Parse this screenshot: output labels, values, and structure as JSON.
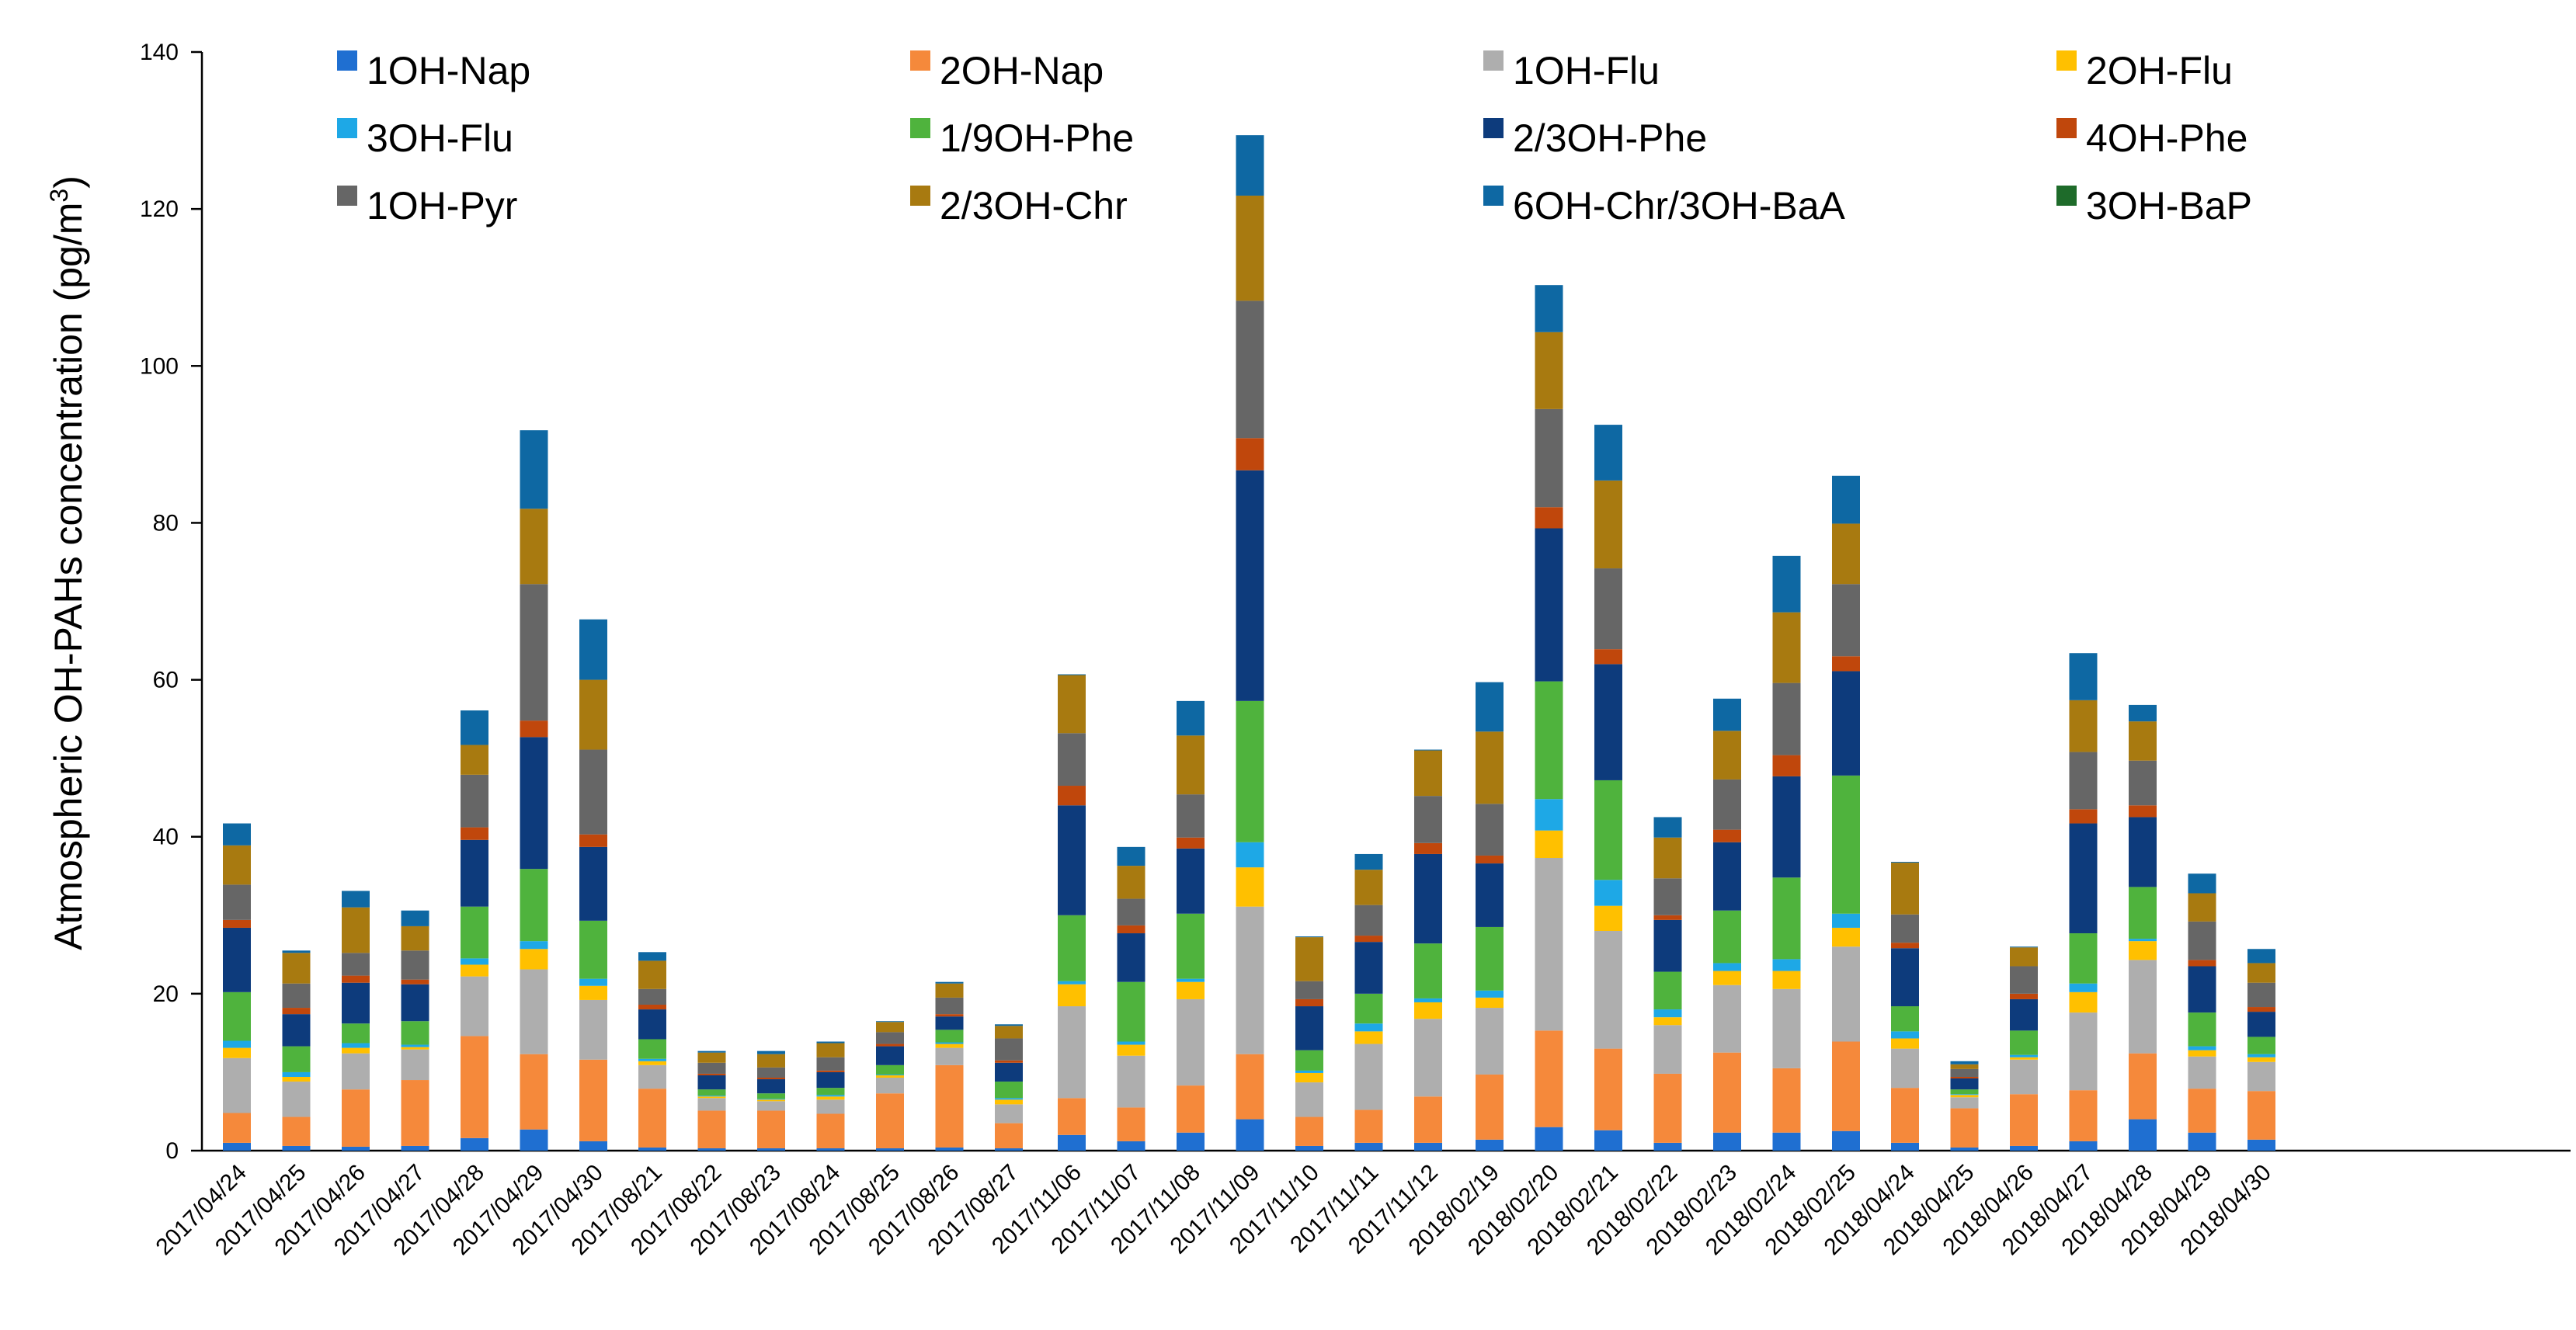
{
  "chart_data": {
    "type": "bar",
    "stacked": true,
    "title": "",
    "xlabel": "",
    "ylabel": "Atmospheric OH-PAHs concentration (pg/m³)",
    "ylabel_parts": [
      "Atmospheric OH-PAHs concentration (pg/m",
      "3",
      ")"
    ],
    "ylim": [
      0,
      140
    ],
    "yticks": [
      0,
      20,
      40,
      60,
      80,
      100,
      120,
      140
    ],
    "legend_position": "top",
    "groups": [
      {
        "categories": [
          "2017/04/24",
          "2017/04/25",
          "2017/04/26",
          "2017/04/27",
          "2017/04/28",
          "2017/04/29",
          "2017/04/30"
        ]
      },
      {
        "categories": [
          "2017/08/21",
          "2017/08/22",
          "2017/08/23",
          "2017/08/24",
          "2017/08/25",
          "2017/08/26",
          "2017/08/27"
        ]
      },
      {
        "categories": [
          "2017/11/06",
          "2017/11/07",
          "2017/11/08",
          "2017/11/09",
          "2017/11/10",
          "2017/11/11",
          "2017/11/12"
        ]
      },
      {
        "categories": [
          "2018/02/19",
          "2018/02/20",
          "2018/02/21",
          "2018/02/22",
          "2018/02/23",
          "2018/02/24",
          "2018/02/25"
        ]
      },
      {
        "categories": [
          "2018/04/24",
          "2018/04/25",
          "2018/04/26",
          "2018/04/27",
          "2018/04/28",
          "2018/04/29",
          "2018/04/30"
        ]
      }
    ],
    "series": [
      {
        "name": "1OH-Nap",
        "color": "#1f6fd1",
        "values": [
          1.0,
          0.6,
          0.5,
          0.6,
          1.6,
          2.7,
          1.2,
          0.4,
          0.3,
          0.3,
          0.3,
          0.3,
          0.4,
          0.3,
          2.0,
          1.2,
          2.3,
          4.0,
          0.6,
          1.0,
          1.0,
          1.4,
          3.0,
          2.6,
          1.0,
          2.3,
          2.3,
          2.5,
          1.0,
          0.4,
          0.6,
          1.2,
          4.0,
          2.3,
          1.4
        ]
      },
      {
        "name": "2OH-Nap",
        "color": "#f5893b",
        "values": [
          3.8,
          3.7,
          7.3,
          8.4,
          13.0,
          9.6,
          10.4,
          7.5,
          4.8,
          4.8,
          4.4,
          7.0,
          10.5,
          3.2,
          4.7,
          4.3,
          6.0,
          8.3,
          3.7,
          4.2,
          5.9,
          8.3,
          12.3,
          10.4,
          8.8,
          10.2,
          8.2,
          11.4,
          7.0,
          5.0,
          6.6,
          6.5,
          8.4,
          5.6,
          6.2
        ]
      },
      {
        "name": "1OH-Flu",
        "color": "#aeaeae",
        "values": [
          7.0,
          4.5,
          4.6,
          3.9,
          7.6,
          10.8,
          7.6,
          3.0,
          1.6,
          1.2,
          1.8,
          2.0,
          2.2,
          2.4,
          11.7,
          6.6,
          11.0,
          18.8,
          4.4,
          8.4,
          9.9,
          8.5,
          22.0,
          15.0,
          6.2,
          8.6,
          10.1,
          12.1,
          5.0,
          1.4,
          4.4,
          9.9,
          11.9,
          4.1,
          3.7
        ]
      },
      {
        "name": "2OH-Flu",
        "color": "#ffc000",
        "values": [
          1.3,
          0.6,
          0.7,
          0.3,
          1.5,
          2.6,
          1.8,
          0.5,
          0.2,
          0.2,
          0.4,
          0.3,
          0.5,
          0.6,
          2.8,
          1.4,
          2.2,
          5.0,
          1.2,
          1.6,
          2.1,
          1.3,
          3.5,
          3.2,
          1.0,
          1.8,
          2.3,
          2.4,
          1.3,
          0.3,
          0.3,
          2.6,
          2.4,
          0.8,
          0.6
        ]
      },
      {
        "name": "3OH-Flu",
        "color": "#1ea8e6",
        "values": [
          0.9,
          0.6,
          0.6,
          0.3,
          0.8,
          1.0,
          0.9,
          0.3,
          0.1,
          0.1,
          0.2,
          0.1,
          0.2,
          0.2,
          0.4,
          0.4,
          0.4,
          3.2,
          0.3,
          1.0,
          0.5,
          0.9,
          4.0,
          3.3,
          1.0,
          1.0,
          1.5,
          1.8,
          0.9,
          0.1,
          0.3,
          1.1,
          0.3,
          0.5,
          0.4
        ]
      },
      {
        "name": "1/9OH-Phe",
        "color": "#4fb33d",
        "values": [
          6.2,
          3.3,
          2.5,
          3.0,
          6.6,
          9.2,
          7.4,
          2.5,
          0.8,
          0.7,
          0.9,
          1.2,
          1.6,
          2.1,
          8.4,
          7.6,
          8.3,
          18.0,
          2.6,
          3.8,
          7.0,
          8.1,
          15.0,
          12.7,
          4.8,
          6.7,
          10.4,
          17.6,
          3.2,
          0.6,
          3.1,
          6.4,
          6.6,
          4.3,
          2.2
        ]
      },
      {
        "name": "2/3OH-Phe",
        "color": "#0d3b7c",
        "values": [
          8.2,
          4.1,
          5.2,
          4.7,
          8.5,
          16.8,
          9.4,
          3.8,
          1.8,
          1.8,
          2.0,
          2.4,
          1.7,
          2.4,
          14.0,
          6.2,
          8.3,
          29.4,
          5.6,
          6.6,
          11.4,
          8.1,
          19.5,
          14.8,
          6.6,
          8.7,
          12.9,
          13.3,
          7.4,
          1.4,
          4.0,
          14.0,
          8.9,
          5.9,
          3.2
        ]
      },
      {
        "name": "4OH-Phe",
        "color": "#c0470c",
        "values": [
          1.0,
          0.8,
          0.9,
          0.6,
          1.6,
          2.1,
          1.6,
          0.6,
          0.2,
          0.2,
          0.2,
          0.3,
          0.3,
          0.3,
          2.5,
          1.0,
          1.4,
          4.1,
          0.9,
          0.8,
          1.4,
          1.0,
          2.7,
          1.9,
          0.6,
          1.6,
          2.7,
          1.9,
          0.7,
          0.2,
          0.7,
          1.8,
          1.5,
          0.8,
          0.6
        ]
      },
      {
        "name": "1OH-Pyr",
        "color": "#666666",
        "values": [
          4.5,
          3.1,
          2.9,
          3.7,
          6.7,
          17.4,
          10.8,
          2.0,
          1.4,
          1.3,
          1.7,
          1.5,
          2.1,
          2.8,
          6.7,
          3.4,
          5.5,
          17.5,
          2.3,
          3.9,
          6.0,
          6.6,
          12.5,
          10.3,
          4.7,
          6.4,
          9.2,
          9.2,
          3.6,
          1.0,
          3.5,
          7.3,
          5.7,
          4.9,
          3.1
        ]
      },
      {
        "name": "2/3OH-Chr",
        "color": "#a87a10",
        "values": [
          5.0,
          3.9,
          5.8,
          3.1,
          3.8,
          9.6,
          8.9,
          3.6,
          1.3,
          1.7,
          1.8,
          1.3,
          1.8,
          1.6,
          7.4,
          4.2,
          7.5,
          13.4,
          5.6,
          4.5,
          5.8,
          9.2,
          9.8,
          11.2,
          5.2,
          6.2,
          9.0,
          7.7,
          6.6,
          0.6,
          2.4,
          6.6,
          5.0,
          3.6,
          2.5
        ]
      },
      {
        "name": "6OH-Chr/3OH-BaA",
        "color": "#0e68a3",
        "values": [
          2.8,
          0.3,
          2.1,
          2.0,
          4.4,
          10.0,
          7.7,
          1.1,
          0.2,
          0.4,
          0.2,
          0.1,
          0.2,
          0.2,
          0.1,
          2.4,
          4.4,
          7.7,
          0.1,
          2.0,
          0.1,
          6.3,
          6.0,
          7.1,
          2.6,
          4.1,
          7.2,
          6.1,
          0.1,
          0.4,
          0.1,
          6.0,
          2.1,
          2.5,
          1.8
        ]
      },
      {
        "name": "3OH-BaP",
        "color": "#1e6b2a",
        "values": [
          0,
          0,
          0,
          0,
          0,
          0,
          0,
          0,
          0,
          0,
          0,
          0,
          0,
          0,
          0,
          0,
          0,
          0,
          0,
          0,
          0,
          0,
          0,
          0,
          0,
          0,
          0,
          0,
          0,
          0,
          0,
          0,
          0,
          0,
          0
        ]
      }
    ]
  }
}
